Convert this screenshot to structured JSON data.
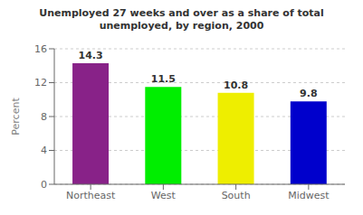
{
  "chart_data": {
    "type": "bar",
    "title": "Unemployed 27 weeks and over as a share of total\nunemployed, by region, 2000",
    "categories": [
      "Northeast",
      "West",
      "South",
      "Midwest"
    ],
    "values": [
      14.3,
      11.5,
      10.8,
      9.8
    ],
    "colors": [
      "#882288",
      "#00EE00",
      "#EEEE00",
      "#0000CC"
    ],
    "ylabel": "Percent",
    "ylim": [
      0,
      16
    ],
    "yticks": [
      0,
      4,
      8,
      12,
      16
    ],
    "grid": true,
    "data_labels": true
  }
}
